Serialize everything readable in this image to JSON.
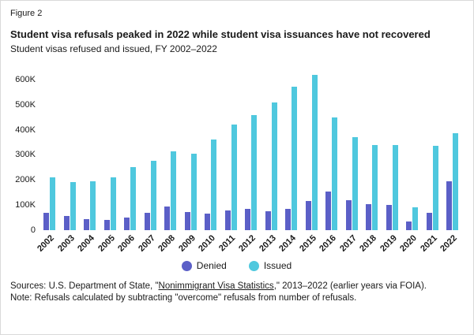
{
  "figure_label": "Figure 2",
  "title": "Student visa refusals peaked in 2022 while student visa issuances have not recovered",
  "subtitle": "Student visas refused and issued, FY 2002–2022",
  "chart_data": {
    "type": "bar",
    "categories": [
      "2002",
      "2003",
      "2004",
      "2005",
      "2006",
      "2007",
      "2008",
      "2009",
      "2010",
      "2011",
      "2012",
      "2013",
      "2014",
      "2015",
      "2016",
      "2017",
      "2018",
      "2019",
      "2020",
      "2021",
      "2022"
    ],
    "series": [
      {
        "name": "Denied",
        "color": "#5b5fc7",
        "values": [
          70000,
          55000,
          45000,
          40000,
          50000,
          70000,
          95000,
          72000,
          65000,
          80000,
          85000,
          75000,
          85000,
          115000,
          155000,
          120000,
          105000,
          100000,
          35000,
          70000,
          195000
        ]
      },
      {
        "name": "Issued",
        "color": "#4fc8de",
        "values": [
          210000,
          190000,
          195000,
          210000,
          250000,
          275000,
          315000,
          305000,
          360000,
          420000,
          460000,
          510000,
          570000,
          620000,
          450000,
          370000,
          340000,
          340000,
          90000,
          335000,
          385000
        ]
      }
    ],
    "title": "Student visa refusals peaked in 2022 while student visa issuances have not recovered",
    "xlabel": "",
    "ylabel": "",
    "ylim": [
      0,
      650000
    ],
    "ytick_labels": [
      "0",
      "100K",
      "200K",
      "300K",
      "400K",
      "500K",
      "600K"
    ],
    "ytick_values": [
      0,
      100000,
      200000,
      300000,
      400000,
      500000,
      600000
    ],
    "grid": false,
    "legend_position": "bottom"
  },
  "footer": {
    "sources_prefix": "Sources: U.S. Department of State, \"",
    "sources_link": "Nonimmigrant Visa Statistics",
    "sources_suffix": ",\" 2013–2022 (earlier years via FOIA).",
    "note": "Note: Refusals calculated by subtracting \"overcome\" refusals from number of refusals."
  }
}
